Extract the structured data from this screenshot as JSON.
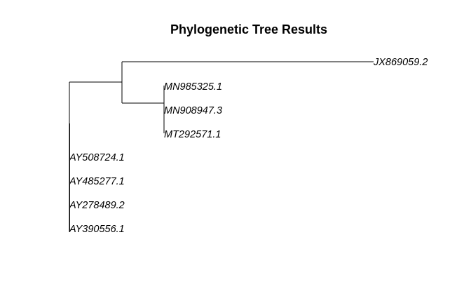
{
  "title": "Phylogenetic Tree Results",
  "tips": [
    "JX869059.2",
    "MN985325.1",
    "MN908947.3",
    "MT292571.1",
    "AY508724.1",
    "AY485277.1",
    "AY278489.2",
    "AY390556.1"
  ],
  "colors": {
    "line": "#000000",
    "text": "#000000",
    "background": "#ffffff"
  }
}
